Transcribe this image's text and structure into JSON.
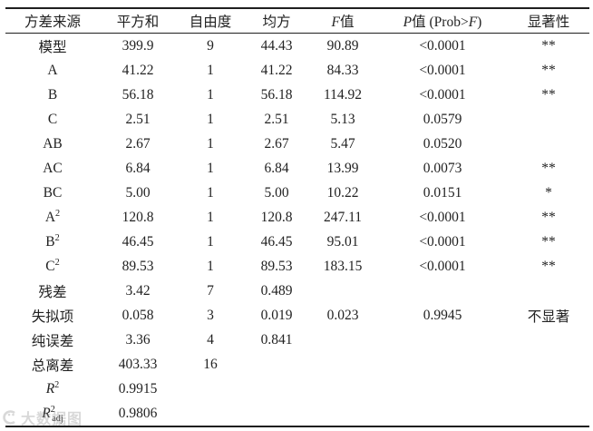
{
  "table": {
    "columns": [
      "方差来源",
      "平方和",
      "自由度",
      "均方",
      [
        {
          "t": "F",
          "i": 1
        },
        {
          "t": "值"
        }
      ],
      [
        {
          "t": "P",
          "i": 1
        },
        {
          "t": "值 (Prob>"
        },
        {
          "t": "F",
          "i": 1
        },
        {
          "t": ")"
        }
      ],
      "显著性"
    ],
    "rows": [
      [
        "模型",
        "399.9",
        "9",
        "44.43",
        "90.89",
        "<0.0001",
        "**"
      ],
      [
        "A",
        "41.22",
        "1",
        "41.22",
        "84.33",
        "<0.0001",
        "**"
      ],
      [
        "B",
        "56.18",
        "1",
        "56.18",
        "114.92",
        "<0.0001",
        "**"
      ],
      [
        "C",
        "2.51",
        "1",
        "2.51",
        "5.13",
        "0.0579",
        ""
      ],
      [
        "AB",
        "2.67",
        "1",
        "2.67",
        "5.47",
        "0.0520",
        ""
      ],
      [
        "AC",
        "6.84",
        "1",
        "6.84",
        "13.99",
        "0.0073",
        "**"
      ],
      [
        "BC",
        "5.00",
        "1",
        "5.00",
        "10.22",
        "0.0151",
        "*"
      ],
      [
        [
          {
            "t": "A"
          },
          {
            "t": "2",
            "sup": 1
          }
        ],
        "120.8",
        "1",
        "120.8",
        "247.11",
        "<0.0001",
        "**"
      ],
      [
        [
          {
            "t": "B"
          },
          {
            "t": "2",
            "sup": 1
          }
        ],
        "46.45",
        "1",
        "46.45",
        "95.01",
        "<0.0001",
        "**"
      ],
      [
        [
          {
            "t": "C"
          },
          {
            "t": "2",
            "sup": 1
          }
        ],
        "89.53",
        "1",
        "89.53",
        "183.15",
        "<0.0001",
        "**"
      ],
      [
        "残差",
        "3.42",
        "7",
        "0.489",
        "",
        "",
        ""
      ],
      [
        "失拟项",
        "0.058",
        "3",
        "0.019",
        "0.023",
        "0.9945",
        "不显著"
      ],
      [
        "纯误差",
        "3.36",
        "4",
        "0.841",
        "",
        "",
        ""
      ],
      [
        "总离差",
        "403.33",
        "16",
        "",
        "",
        "",
        ""
      ],
      [
        [
          {
            "t": "R",
            "i": 1
          },
          {
            "t": "2",
            "sup": 1
          }
        ],
        "0.9915",
        "",
        "",
        "",
        "",
        ""
      ],
      [
        [
          {
            "t": "R",
            "i": 1
          },
          {
            "t": "2",
            "sup": 1
          },
          {
            "t": "adj",
            "sub": 1
          }
        ],
        "0.9806",
        "",
        "",
        "",
        "",
        ""
      ]
    ]
  },
  "watermark": {
    "text": "大数据图"
  },
  "colors": {
    "text": "#222222",
    "rule": "#1f1f1f",
    "watermark": "#9a9a9a"
  }
}
